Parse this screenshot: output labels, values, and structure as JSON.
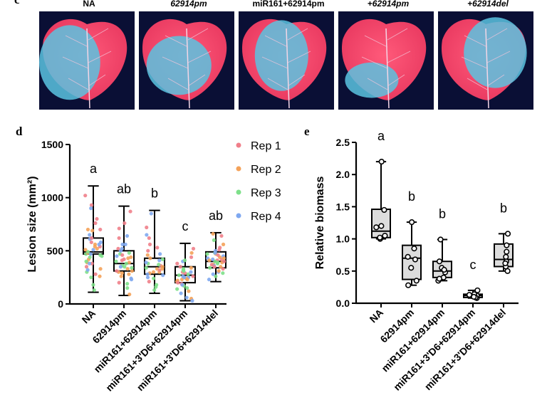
{
  "panels": {
    "c": {
      "letter": "c",
      "images": [
        {
          "label": "NA",
          "italic": false
        },
        {
          "label": "62914pm",
          "italic": true
        },
        {
          "label": "miR161+62914pm",
          "italic": false
        },
        {
          "label": "+62914pm",
          "italic": true
        },
        {
          "label": "+62914del",
          "italic": true
        }
      ]
    },
    "d": {
      "letter": "d"
    },
    "e": {
      "letter": "e"
    }
  },
  "colors": {
    "rep1": "#f07f8a",
    "rep2": "#f4a259",
    "rep3": "#7ee08a",
    "rep4": "#7fa8f0",
    "box_fill": "#dddddd",
    "leaf_bg": "#0a0f35",
    "leaf_red": "#e8385f",
    "leaf_blue": "#5bc3e0"
  },
  "chart_data": [
    {
      "type": "box",
      "ylabel": "Lesion size (mm²)",
      "ylim": [
        0,
        1500
      ],
      "yticks": [
        "0",
        "500",
        "1000",
        "1500"
      ],
      "categories": [
        "NA",
        "62914pm",
        "miR161+62914pm",
        "miR161+3'D6+62914pm",
        "miR161+3'D6+62914del"
      ],
      "boxes": [
        {
          "min": 110,
          "q1": 470,
          "median": 490,
          "q3": 620,
          "max": 1110
        },
        {
          "min": 80,
          "q1": 310,
          "median": 380,
          "q3": 500,
          "max": 920
        },
        {
          "min": 100,
          "q1": 280,
          "median": 350,
          "q3": 430,
          "max": 880
        },
        {
          "min": 30,
          "q1": 200,
          "median": 270,
          "q3": 350,
          "max": 570
        },
        {
          "min": 210,
          "q1": 340,
          "median": 400,
          "q3": 490,
          "max": 670
        }
      ],
      "letters": [
        "a",
        "ab",
        "b",
        "c",
        "ab"
      ],
      "legend": [
        "Rep 1",
        "Rep 2",
        "Rep 3",
        "Rep 4"
      ],
      "legend_position": "top-right",
      "points": [
        [
          540,
          330,
          470,
          620,
          700,
          390,
          250,
          510,
          760,
          420,
          300,
          580,
          930,
          480,
          180,
          650,
          350,
          520,
          440,
          610,
          1020,
          260,
          490,
          560,
          380,
          700,
          130,
          470,
          800,
          560,
          400,
          320,
          620,
          510,
          450,
          900,
          280,
          540,
          460,
          380,
          580,
          690
        ],
        [
          410,
          280,
          360,
          520,
          620,
          300,
          190,
          450,
          710,
          330,
          480,
          240,
          870,
          390,
          150,
          560,
          420,
          310,
          470,
          350,
          520,
          260,
          380,
          640,
          200,
          440,
          340,
          500,
          760,
          290,
          400,
          230,
          460,
          90,
          350,
          560,
          310,
          430
        ],
        [
          360,
          290,
          420,
          250,
          530,
          330,
          180,
          470,
          620,
          300,
          380,
          270,
          720,
          350,
          130,
          410,
          320,
          460,
          240,
          390,
          560,
          300,
          340,
          850,
          210,
          430,
          370,
          280,
          500,
          330,
          160,
          650
        ],
        [
          300,
          220,
          170,
          400,
          260,
          120,
          330,
          250,
          190,
          480,
          280,
          60,
          350,
          230,
          140,
          300,
          380,
          210,
          270,
          100,
          520,
          240,
          320,
          180,
          290,
          50,
          410,
          260,
          200,
          340,
          150,
          250,
          440,
          230,
          310,
          30
        ],
        [
          420,
          370,
          480,
          300,
          530,
          390,
          260,
          450,
          410,
          350,
          600,
          430,
          330,
          470,
          380,
          280,
          510,
          440,
          400,
          360,
          640,
          310,
          470,
          420,
          350,
          560,
          390,
          230,
          460,
          410,
          340,
          500,
          370,
          430,
          290,
          480,
          400,
          660
        ]
      ]
    },
    {
      "type": "box",
      "ylabel": "Relative biomass",
      "ylim": [
        0,
        2.5
      ],
      "yticks": [
        "0.0",
        "0.5",
        "1.0",
        "1.5",
        "2.0",
        "2.5"
      ],
      "categories": [
        "NA",
        "62914pm",
        "miR161+62914pm",
        "miR161+3'D6+62914pm",
        "miR161+3'D6+62914del"
      ],
      "boxes": [
        {
          "min": 1.0,
          "q1": 1.02,
          "median": 1.12,
          "q3": 1.46,
          "max": 2.2
        },
        {
          "min": 0.28,
          "q1": 0.37,
          "median": 0.7,
          "q3": 0.9,
          "max": 1.26
        },
        {
          "min": 0.35,
          "q1": 0.4,
          "median": 0.5,
          "q3": 0.65,
          "max": 0.99
        },
        {
          "min": 0.08,
          "q1": 0.09,
          "median": 0.12,
          "q3": 0.14,
          "max": 0.2
        },
        {
          "min": 0.5,
          "q1": 0.57,
          "median": 0.68,
          "q3": 0.92,
          "max": 1.08
        }
      ],
      "letters": [
        "a",
        "b",
        "b",
        "c",
        "b"
      ],
      "points": [
        [
          1.0,
          1.05,
          1.2,
          1.45,
          2.2,
          1.02,
          1.18
        ],
        [
          0.28,
          0.35,
          0.55,
          0.72,
          0.85,
          1.26,
          0.68
        ],
        [
          0.35,
          0.4,
          0.48,
          0.55,
          0.65,
          0.99,
          0.38,
          0.52
        ],
        [
          0.08,
          0.1,
          0.11,
          0.12,
          0.14,
          0.2,
          0.09,
          0.13,
          0.1
        ],
        [
          0.5,
          0.57,
          0.65,
          0.72,
          0.9,
          1.08,
          0.62,
          0.8
        ]
      ]
    }
  ]
}
